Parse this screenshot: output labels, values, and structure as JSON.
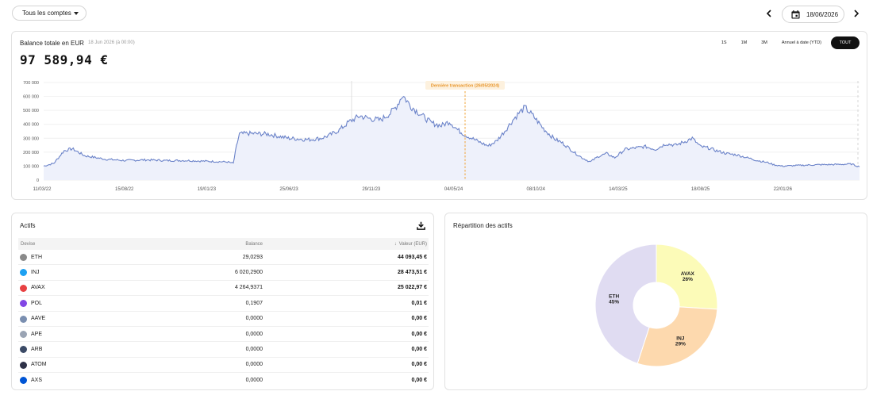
{
  "topbar": {
    "account_label": "Tous les comptes",
    "date_label": "18/06/2026"
  },
  "balance": {
    "title": "Balance totale en EUR",
    "date_note": "18 Jun 2026 (à 00:00)",
    "value": "97 589,94 €",
    "ranges": [
      "1S",
      "1M",
      "3M",
      "Annuel à date (YTD)",
      "TOUT"
    ],
    "active_range": "TOUT"
  },
  "chart_data": {
    "type": "area",
    "y_ticks": [
      "700 000",
      "600 000",
      "500 000",
      "400 000",
      "300 000",
      "200 000",
      "100 000",
      "0"
    ],
    "x_ticks": [
      "11/03/22",
      "15/08/22",
      "19/01/23",
      "25/06/23",
      "29/11/23",
      "04/05/24",
      "08/10/24",
      "14/03/25",
      "18/08/25",
      "22/01/26"
    ],
    "ylim": [
      0,
      700000
    ],
    "annotation": "Dernière transaction (26/05/2024)",
    "color": "#6b83c9",
    "points": [
      [
        0,
        100000
      ],
      [
        0.5,
        120000
      ],
      [
        1,
        210000
      ],
      [
        1.4,
        225000
      ],
      [
        2,
        175000
      ],
      [
        3,
        150000
      ],
      [
        4,
        140000
      ],
      [
        5,
        145000
      ],
      [
        6,
        140000
      ],
      [
        7,
        140000
      ],
      [
        8,
        135000
      ],
      [
        9,
        130000
      ],
      [
        9.3,
        120000
      ],
      [
        9.45,
        240000
      ],
      [
        9.6,
        330000
      ],
      [
        10,
        335000
      ],
      [
        11,
        330000
      ],
      [
        12,
        300000
      ],
      [
        13,
        290000
      ],
      [
        13.6,
        300000
      ],
      [
        14,
        320000
      ],
      [
        14.5,
        360000
      ],
      [
        15,
        420000
      ],
      [
        15.5,
        460000
      ],
      [
        16,
        440000
      ],
      [
        16.5,
        430000
      ],
      [
        17,
        480000
      ],
      [
        17.3,
        530000
      ],
      [
        17.6,
        610000
      ],
      [
        18,
        530000
      ],
      [
        18.5,
        470000
      ],
      [
        19,
        410000
      ],
      [
        19.5,
        390000
      ],
      [
        19.9,
        420000
      ],
      [
        20.3,
        360000
      ],
      [
        20.7,
        320000
      ],
      [
        21,
        300000
      ],
      [
        21.4,
        270000
      ],
      [
        21.8,
        245000
      ],
      [
        22.2,
        280000
      ],
      [
        22.6,
        350000
      ],
      [
        23,
        430000
      ],
      [
        23.3,
        480000
      ],
      [
        23.6,
        520000
      ],
      [
        24,
        460000
      ],
      [
        24.5,
        370000
      ],
      [
        25,
        300000
      ],
      [
        25.5,
        260000
      ],
      [
        26,
        200000
      ],
      [
        26.4,
        160000
      ],
      [
        26.8,
        130000
      ],
      [
        27.2,
        170000
      ],
      [
        27.6,
        190000
      ],
      [
        28,
        160000
      ],
      [
        28.5,
        220000
      ],
      [
        29,
        230000
      ],
      [
        29.5,
        240000
      ],
      [
        30,
        220000
      ],
      [
        30.5,
        260000
      ],
      [
        31,
        250000
      ],
      [
        31.5,
        280000
      ],
      [
        31.8,
        300000
      ],
      [
        32.2,
        240000
      ],
      [
        32.6,
        230000
      ],
      [
        33,
        210000
      ],
      [
        33.5,
        190000
      ],
      [
        34,
        180000
      ],
      [
        34.5,
        160000
      ],
      [
        35,
        140000
      ],
      [
        35.5,
        125000
      ],
      [
        35.8,
        110000
      ],
      [
        36.2,
        100000
      ],
      [
        37,
        105000
      ],
      [
        38,
        110000
      ],
      [
        39,
        112000
      ],
      [
        39.6,
        115000
      ],
      [
        40,
        95000
      ]
    ]
  },
  "assets": {
    "title": "Actifs",
    "columns": {
      "currency": "Devise",
      "balance": "Balance",
      "value": "Valeur (EUR)"
    },
    "rows": [
      {
        "name": "ETH",
        "balance": "29,0293",
        "value": "44 093,45 €",
        "icon": "eth-icon",
        "color": "#8a8a8a"
      },
      {
        "name": "INJ",
        "balance": "6 020,2900",
        "value": "28 473,51 €",
        "icon": "inj-icon",
        "color": "#1da1f2"
      },
      {
        "name": "AVAX",
        "balance": "4 264,9371",
        "value": "25 022,97 €",
        "icon": "avax-icon",
        "color": "#e84142"
      },
      {
        "name": "POL",
        "balance": "0,1907",
        "value": "0,01 €",
        "icon": "pol-icon",
        "color": "#8247e5"
      },
      {
        "name": "AAVE",
        "balance": "0,0000",
        "value": "0,00 €",
        "icon": "aave-icon",
        "color": "#7a8fb0"
      },
      {
        "name": "APE",
        "balance": "0,0000",
        "value": "0,00 €",
        "icon": "ape-icon",
        "color": "#9aa4b4"
      },
      {
        "name": "ARB",
        "balance": "0,0000",
        "value": "0,00 €",
        "icon": "arb-icon",
        "color": "#3b4a66"
      },
      {
        "name": "ATOM",
        "balance": "0,0000",
        "value": "0,00 €",
        "icon": "atom-icon",
        "color": "#2e3148"
      },
      {
        "name": "AXS",
        "balance": "0,0000",
        "value": "0,00 €",
        "icon": "axs-icon",
        "color": "#0055d5"
      }
    ]
  },
  "split": {
    "title": "Répartition des actifs",
    "slices": [
      {
        "name": "AVAX",
        "pct": 26,
        "label": "26%",
        "color": "#fcfbb8"
      },
      {
        "name": "INJ",
        "pct": 29,
        "label": "29%",
        "color": "#fdd9ae"
      },
      {
        "name": "ETH",
        "pct": 45,
        "label": "45%",
        "color": "#e0dcf2"
      }
    ]
  }
}
